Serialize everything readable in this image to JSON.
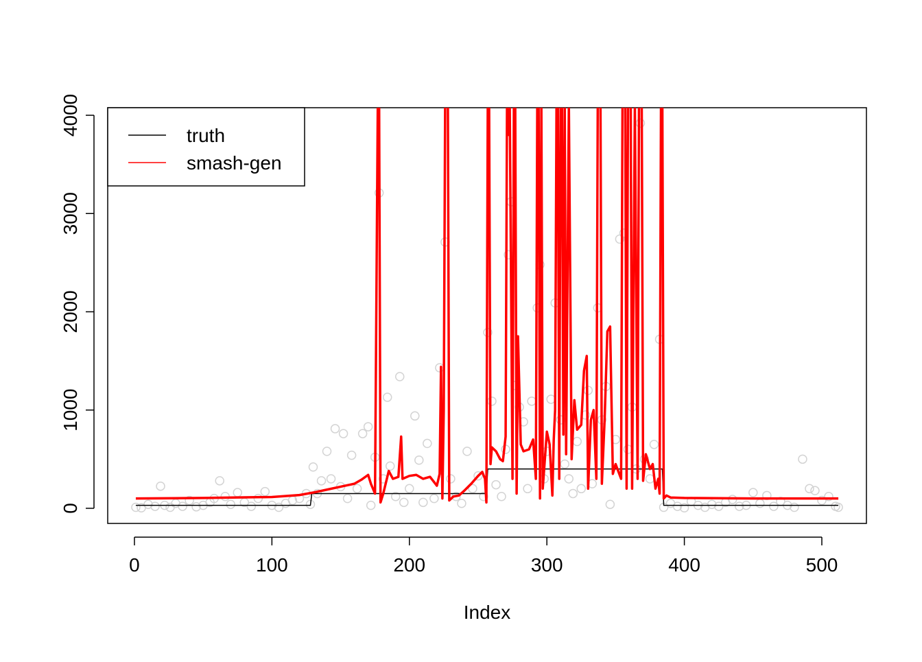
{
  "chart_data": {
    "type": "line",
    "x_label": "Index",
    "xlim": [
      -19.44,
      532.44
    ],
    "ylim": [
      -154,
      4077
    ],
    "xticks": [
      0,
      100,
      200,
      300,
      400,
      500
    ],
    "yticks": [
      0,
      1000,
      2000,
      3000,
      4000
    ],
    "legend": "topleft",
    "points": {
      "color": "#d3d3d3",
      "x": [
        1,
        5,
        10,
        15,
        19,
        22,
        26,
        30,
        35,
        40,
        45,
        50,
        55,
        58,
        62,
        66,
        70,
        75,
        80,
        85,
        90,
        95,
        100,
        105,
        110,
        115,
        120,
        125,
        128,
        130,
        133,
        136,
        140,
        143,
        146,
        150,
        152,
        155,
        158,
        162,
        166,
        170,
        172,
        175,
        178,
        181,
        184,
        186,
        190,
        193,
        196,
        200,
        204,
        207,
        210,
        213,
        218,
        222,
        226,
        230,
        234,
        238,
        242,
        246,
        250,
        254,
        257,
        260,
        263,
        267,
        270,
        272,
        274,
        277,
        280,
        283,
        286,
        289,
        293,
        295,
        298,
        300,
        303,
        306,
        310,
        313,
        316,
        319,
        322,
        325,
        328,
        330,
        333,
        337,
        340,
        343,
        346,
        350,
        353,
        356,
        359,
        362,
        365,
        368,
        371,
        375,
        378,
        382,
        385,
        390,
        395,
        400,
        405,
        410,
        415,
        420,
        425,
        430,
        435,
        440,
        445,
        450,
        455,
        460,
        465,
        470,
        475,
        480,
        486,
        491,
        495,
        500,
        505,
        510,
        512
      ],
      "values": [
        10,
        5,
        40,
        20,
        225,
        30,
        10,
        50,
        20,
        80,
        15,
        30,
        60,
        100,
        280,
        120,
        40,
        160,
        60,
        20,
        100,
        170,
        30,
        10,
        50,
        80,
        100,
        150,
        40,
        420,
        150,
        280,
        580,
        300,
        810,
        220,
        760,
        100,
        540,
        200,
        760,
        830,
        30,
        520,
        3210,
        300,
        1130,
        430,
        120,
        1340,
        60,
        200,
        940,
        490,
        60,
        660,
        100,
        1430,
        2710,
        300,
        120,
        50,
        580,
        200,
        330,
        120,
        1790,
        1090,
        240,
        120,
        600,
        2580,
        3120,
        1250,
        1030,
        880,
        200,
        1090,
        2040,
        2480,
        300,
        580,
        1110,
        2090,
        900,
        450,
        300,
        150,
        680,
        200,
        950,
        1200,
        250,
        2040,
        900,
        1240,
        40,
        700,
        2740,
        2800,
        600,
        1030,
        400,
        3920,
        500,
        300,
        650,
        1720,
        10,
        50,
        20,
        5,
        70,
        30,
        10,
        40,
        20,
        60,
        90,
        20,
        30,
        160,
        50,
        130,
        20,
        70,
        30,
        10,
        500,
        200,
        180,
        80,
        120,
        20,
        10
      ]
    },
    "series": [
      {
        "name": "truth",
        "color": "#000000",
        "x": [
          1,
          128,
          129,
          256,
          257,
          384,
          385,
          512
        ],
        "values": [
          30,
          30,
          150,
          150,
          400,
          400,
          30,
          30
        ]
      },
      {
        "name": "smash-gen",
        "color": "#ff0000",
        "x": [
          1,
          50,
          100,
          120,
          130,
          140,
          150,
          160,
          165,
          170,
          172,
          175,
          177,
          178,
          179,
          181,
          185,
          188,
          192,
          194,
          195,
          200,
          205,
          210,
          215,
          220,
          222,
          223,
          224,
          225,
          226,
          228,
          229,
          232,
          236,
          240,
          245,
          250,
          253,
          255,
          256,
          257,
          258,
          259,
          260,
          263,
          266,
          268,
          270,
          271,
          272,
          273,
          275,
          276,
          277,
          278,
          279,
          281,
          283,
          287,
          290,
          292,
          293,
          294,
          295,
          296,
          297,
          300,
          302,
          304,
          305,
          306,
          307,
          308,
          309,
          310,
          311,
          312,
          313,
          314,
          316,
          318,
          320,
          322,
          325,
          327,
          329,
          330,
          332,
          334,
          336,
          337,
          339,
          340,
          342,
          344,
          346,
          348,
          350,
          354,
          355,
          357,
          358,
          359,
          361,
          362,
          364,
          366,
          367,
          369,
          370,
          372,
          375,
          377,
          379,
          381,
          382,
          383,
          384,
          385,
          387,
          390,
          400,
          450,
          512
        ],
        "values": [
          100,
          105,
          115,
          135,
          160,
          190,
          220,
          250,
          290,
          340,
          250,
          150,
          4100,
          4100,
          60,
          150,
          380,
          300,
          320,
          730,
          300,
          330,
          340,
          300,
          320,
          230,
          350,
          1440,
          100,
          1000,
          4100,
          4100,
          80,
          120,
          130,
          180,
          250,
          330,
          370,
          300,
          60,
          4100,
          4100,
          450,
          620,
          580,
          500,
          480,
          730,
          4100,
          3800,
          4100,
          300,
          4100,
          4100,
          150,
          1750,
          650,
          580,
          600,
          700,
          300,
          4100,
          4100,
          100,
          4100,
          200,
          780,
          650,
          130,
          700,
          1000,
          4100,
          4100,
          300,
          4100,
          4100,
          750,
          4100,
          550,
          4100,
          500,
          1100,
          800,
          850,
          1400,
          1550,
          200,
          900,
          1000,
          300,
          4100,
          4100,
          250,
          900,
          1800,
          1850,
          350,
          450,
          300,
          4100,
          4100,
          200,
          4100,
          4100,
          200,
          4100,
          300,
          4100,
          4100,
          280,
          550,
          400,
          450,
          200,
          300,
          150,
          4100,
          4100,
          100,
          130,
          110,
          105,
          100,
          100
        ]
      }
    ]
  }
}
